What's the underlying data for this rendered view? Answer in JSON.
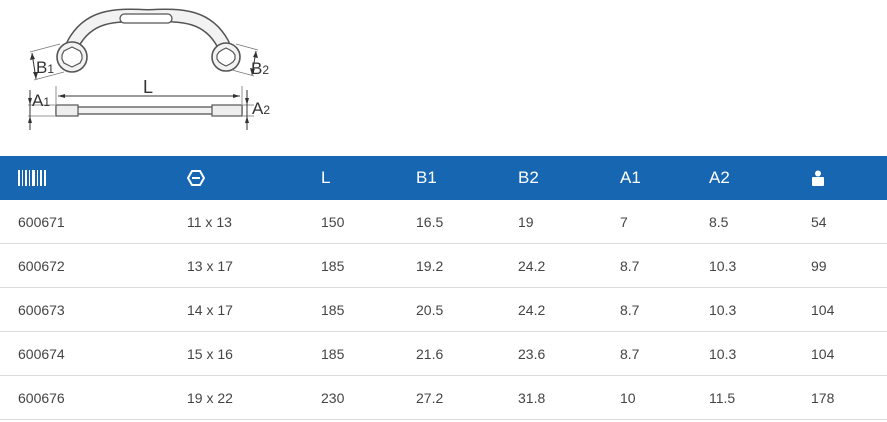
{
  "diagram": {
    "labels": {
      "b1_letter": "B",
      "b1_sub": "1",
      "b2_letter": "B",
      "b2_sub": "2",
      "a1_letter": "A",
      "a1_sub": "1",
      "a2_letter": "A",
      "a2_sub": "2",
      "l": "L"
    }
  },
  "table": {
    "header": {
      "article_icon": "barcode-icon",
      "size_icon": "wrench-size-icon",
      "l": "L",
      "b1": "B1",
      "b2": "B2",
      "a1": "A1",
      "a2": "A2",
      "weight_icon": "weight-icon"
    },
    "rows": [
      {
        "article": "600671",
        "size": "11 x 13",
        "l": "150",
        "b1": "16.5",
        "b2": "19",
        "a1": "7",
        "a2": "8.5",
        "weight": "54"
      },
      {
        "article": "600672",
        "size": "13 x 17",
        "l": "185",
        "b1": "19.2",
        "b2": "24.2",
        "a1": "8.7",
        "a2": "10.3",
        "weight": "99"
      },
      {
        "article": "600673",
        "size": "14 x 17",
        "l": "185",
        "b1": "20.5",
        "b2": "24.2",
        "a1": "8.7",
        "a2": "10.3",
        "weight": "104"
      },
      {
        "article": "600674",
        "size": "15 x 16",
        "l": "185",
        "b1": "21.6",
        "b2": "23.6",
        "a1": "8.7",
        "a2": "10.3",
        "weight": "104"
      },
      {
        "article": "600676",
        "size": "19 x 22",
        "l": "230",
        "b1": "27.2",
        "b2": "31.8",
        "a1": "10",
        "a2": "11.5",
        "weight": "178"
      }
    ]
  },
  "colors": {
    "header_bg": "#1766b2",
    "header_text": "#ffffff",
    "row_divider": "#dcdcdc",
    "cell_text": "#444444"
  }
}
